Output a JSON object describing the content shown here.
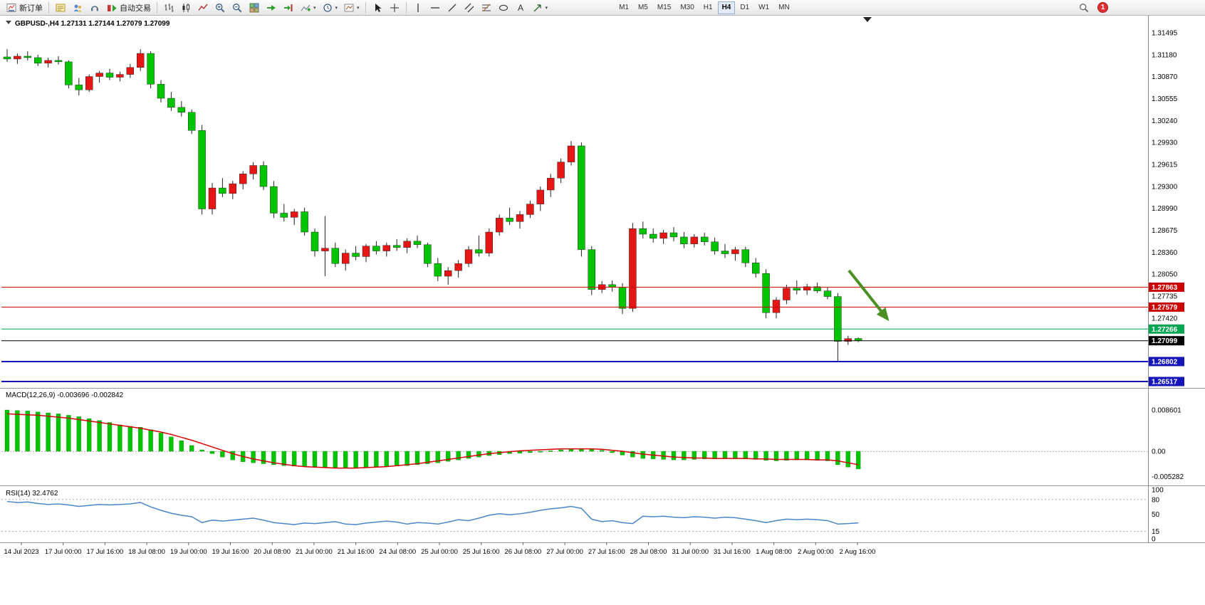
{
  "toolbar": {
    "new_order_label": "新订单",
    "auto_trading_label": "自动交易",
    "timeframes": [
      "M1",
      "M5",
      "M15",
      "M30",
      "H1",
      "H4",
      "D1",
      "W1",
      "MN"
    ],
    "active_timeframe": "H4",
    "notification_count": "1"
  },
  "chart_data": {
    "type": "candlestick",
    "symbol_label": "GBPUSD-,H4",
    "ohlc_label": "1.27131 1.27144 1.27079 1.27099",
    "colors": {
      "up": "#e41616",
      "down": "#00c400",
      "macd_hist": "#00c400",
      "macd_signal": "#d40000",
      "rsi": "#4a86c8",
      "arrow": "#4c8f22"
    },
    "price_axis": {
      "max": 1.31495,
      "min": 1.26517,
      "labels": [
        "1.31495",
        "1.31180",
        "1.30870",
        "1.30555",
        "1.30240",
        "1.29930",
        "1.29615",
        "1.29300",
        "1.28990",
        "1.28675",
        "1.28360",
        "1.28050",
        "1.27735",
        "1.27420"
      ]
    },
    "hlines": [
      {
        "price": 1.27863,
        "label": "1.27863",
        "color": "#cc0000",
        "width": 1
      },
      {
        "price": 1.27579,
        "label": "1.27579",
        "color": "#cc0000",
        "width": 1
      },
      {
        "price": 1.27266,
        "label": "1.27266",
        "color": "#00a651",
        "width": 1
      },
      {
        "price": 1.27099,
        "label": "1.27099",
        "color": "#000000",
        "width": 1
      },
      {
        "price": 1.26802,
        "label": "1.26802",
        "color": "#1414b8",
        "width": 2
      },
      {
        "price": 1.26517,
        "label": "1.26517",
        "color": "#1414b8",
        "width": 2
      }
    ],
    "candles": [
      [
        1.3115,
        1.3126,
        1.3108,
        1.3112
      ],
      [
        1.3112,
        1.312,
        1.3105,
        1.3116
      ],
      [
        1.3116,
        1.3123,
        1.311,
        1.3114
      ],
      [
        1.3114,
        1.3118,
        1.3102,
        1.3106
      ],
      [
        1.3106,
        1.3114,
        1.31,
        1.311
      ],
      [
        1.311,
        1.3116,
        1.3104,
        1.3108
      ],
      [
        1.3108,
        1.311,
        1.307,
        1.3075
      ],
      [
        1.3075,
        1.3085,
        1.306,
        1.3068
      ],
      [
        1.3068,
        1.309,
        1.3065,
        1.3087
      ],
      [
        1.3087,
        1.3095,
        1.3078,
        1.3092
      ],
      [
        1.3092,
        1.3098,
        1.3082,
        1.3086
      ],
      [
        1.3086,
        1.3094,
        1.308,
        1.309
      ],
      [
        1.309,
        1.3105,
        1.3085,
        1.31
      ],
      [
        1.31,
        1.3126,
        1.3095,
        1.312
      ],
      [
        1.312,
        1.3123,
        1.307,
        1.3076
      ],
      [
        1.3076,
        1.3082,
        1.305,
        1.3056
      ],
      [
        1.3056,
        1.3065,
        1.3038,
        1.3043
      ],
      [
        1.3043,
        1.3052,
        1.303,
        1.3036
      ],
      [
        1.3036,
        1.304,
        1.3005,
        1.301
      ],
      [
        1.301,
        1.3018,
        1.289,
        1.2898
      ],
      [
        1.2898,
        1.2935,
        1.289,
        1.2928
      ],
      [
        1.2928,
        1.2942,
        1.2915,
        1.292
      ],
      [
        1.292,
        1.2938,
        1.2912,
        1.2934
      ],
      [
        1.2934,
        1.2952,
        1.2926,
        1.2948
      ],
      [
        1.2948,
        1.2965,
        1.294,
        1.296
      ],
      [
        1.296,
        1.2966,
        1.2925,
        1.293
      ],
      [
        1.293,
        1.2938,
        1.2885,
        1.2892
      ],
      [
        1.2892,
        1.2905,
        1.288,
        1.2886
      ],
      [
        1.2886,
        1.2898,
        1.2875,
        1.2894
      ],
      [
        1.2894,
        1.29,
        1.286,
        1.2865
      ],
      [
        1.2865,
        1.287,
        1.283,
        1.2838
      ],
      [
        1.2838,
        1.2888,
        1.2802,
        1.2842
      ],
      [
        1.2842,
        1.285,
        1.2815,
        1.282
      ],
      [
        1.282,
        1.284,
        1.281,
        1.2835
      ],
      [
        1.2835,
        1.2845,
        1.2825,
        1.283
      ],
      [
        1.283,
        1.2848,
        1.2822,
        1.2845
      ],
      [
        1.2845,
        1.2852,
        1.2833,
        1.2838
      ],
      [
        1.2838,
        1.285,
        1.283,
        1.2846
      ],
      [
        1.2846,
        1.2855,
        1.2838,
        1.2843
      ],
      [
        1.2843,
        1.2856,
        1.2835,
        1.2852
      ],
      [
        1.2852,
        1.286,
        1.2842,
        1.2847
      ],
      [
        1.2847,
        1.285,
        1.2815,
        1.282
      ],
      [
        1.282,
        1.2828,
        1.2795,
        1.2802
      ],
      [
        1.2802,
        1.2815,
        1.279,
        1.281
      ],
      [
        1.281,
        1.2825,
        1.28,
        1.282
      ],
      [
        1.282,
        1.2845,
        1.2815,
        1.284
      ],
      [
        1.284,
        1.286,
        1.283,
        1.2835
      ],
      [
        1.2835,
        1.287,
        1.283,
        1.2865
      ],
      [
        1.2865,
        1.289,
        1.286,
        1.2885
      ],
      [
        1.2885,
        1.29,
        1.2875,
        1.288
      ],
      [
        1.288,
        1.2895,
        1.287,
        1.289
      ],
      [
        1.289,
        1.291,
        1.2885,
        1.2905
      ],
      [
        1.2905,
        1.293,
        1.2895,
        1.2925
      ],
      [
        1.2925,
        1.2948,
        1.2915,
        1.2942
      ],
      [
        1.2942,
        1.297,
        1.2935,
        1.2965
      ],
      [
        1.2965,
        1.2995,
        1.296,
        1.2988
      ],
      [
        1.2988,
        1.2993,
        1.283,
        1.284
      ],
      [
        1.284,
        1.2845,
        1.2775,
        1.2783
      ],
      [
        1.2783,
        1.2795,
        1.2778,
        1.279
      ],
      [
        1.279,
        1.2796,
        1.278,
        1.2786
      ],
      [
        1.2786,
        1.2792,
        1.2748,
        1.2756
      ],
      [
        1.2756,
        1.2878,
        1.2751,
        1.287
      ],
      [
        1.287,
        1.288,
        1.2856,
        1.2862
      ],
      [
        1.2862,
        1.287,
        1.285,
        1.2856
      ],
      [
        1.2856,
        1.2868,
        1.2848,
        1.2864
      ],
      [
        1.2864,
        1.2872,
        1.2852,
        1.2858
      ],
      [
        1.2858,
        1.2865,
        1.2842,
        1.2848
      ],
      [
        1.2848,
        1.2862,
        1.2843,
        1.2858
      ],
      [
        1.2858,
        1.2864,
        1.2846,
        1.2851
      ],
      [
        1.2851,
        1.2857,
        1.2833,
        1.2838
      ],
      [
        1.2838,
        1.2848,
        1.2828,
        1.2834
      ],
      [
        1.2834,
        1.2844,
        1.2824,
        1.284
      ],
      [
        1.284,
        1.2844,
        1.2815,
        1.2821
      ],
      [
        1.2821,
        1.2828,
        1.28,
        1.2806
      ],
      [
        1.2806,
        1.2812,
        1.2742,
        1.275
      ],
      [
        1.275,
        1.2772,
        1.2742,
        1.2768
      ],
      [
        1.2768,
        1.279,
        1.2762,
        1.2785
      ],
      [
        1.2785,
        1.2796,
        1.2776,
        1.2782
      ],
      [
        1.2782,
        1.2791,
        1.2775,
        1.2787
      ],
      [
        1.2787,
        1.2793,
        1.2778,
        1.2781
      ],
      [
        1.2781,
        1.2786,
        1.2769,
        1.2773
      ],
      [
        1.2773,
        1.2778,
        1.2681,
        1.2709
      ],
      [
        1.2709,
        1.2717,
        1.2704,
        1.2713
      ],
      [
        1.27131,
        1.27144,
        1.27079,
        1.27099
      ]
    ],
    "macd": {
      "label": "MACD(12,26,9)",
      "main_value": "-0.003696",
      "signal_value": "-0.002842",
      "axis": [
        "0.008601",
        "0.00",
        "-0.005282"
      ],
      "histogram": [
        0.0086,
        0.0085,
        0.0084,
        0.0082,
        0.008,
        0.0078,
        0.0075,
        0.0072,
        0.0068,
        0.0064,
        0.006,
        0.0055,
        0.0052,
        0.005,
        0.0045,
        0.0038,
        0.003,
        0.0022,
        0.0012,
        0.0003,
        -0.0005,
        -0.0012,
        -0.0018,
        -0.0022,
        -0.0024,
        -0.0026,
        -0.0028,
        -0.003,
        -0.0031,
        -0.0032,
        -0.0033,
        -0.0034,
        -0.0034,
        -0.0035,
        -0.0035,
        -0.0034,
        -0.0033,
        -0.0032,
        -0.0031,
        -0.003,
        -0.0028,
        -0.0026,
        -0.0024,
        -0.0021,
        -0.0018,
        -0.0015,
        -0.0012,
        -0.0009,
        -0.0007,
        -0.0005,
        -0.0004,
        -0.0003,
        -0.0002,
        0.0001,
        0.0003,
        0.0004,
        0.0005,
        0.0004,
        0.0002,
        -0.0003,
        -0.0008,
        -0.0012,
        -0.0015,
        -0.0016,
        -0.0017,
        -0.0018,
        -0.0018,
        -0.0017,
        -0.0016,
        -0.0016,
        -0.0015,
        -0.0015,
        -0.0016,
        -0.0017,
        -0.0019,
        -0.002,
        -0.0019,
        -0.0018,
        -0.0018,
        -0.0019,
        -0.002,
        -0.0028,
        -0.0033,
        -0.0037
      ],
      "signal": [
        0.0078,
        0.0077,
        0.0076,
        0.0075,
        0.0073,
        0.0071,
        0.0069,
        0.0066,
        0.0063,
        0.006,
        0.0057,
        0.0054,
        0.0051,
        0.0048,
        0.0044,
        0.004,
        0.0035,
        0.0029,
        0.0023,
        0.0016,
        0.0009,
        0.0002,
        -0.0005,
        -0.0011,
        -0.0016,
        -0.002,
        -0.0024,
        -0.0027,
        -0.003,
        -0.0032,
        -0.0033,
        -0.0034,
        -0.0035,
        -0.0035,
        -0.0035,
        -0.0034,
        -0.0033,
        -0.0032,
        -0.003,
        -0.0028,
        -0.0026,
        -0.0023,
        -0.002,
        -0.0017,
        -0.0014,
        -0.0011,
        -0.0008,
        -0.0005,
        -0.0003,
        -0.0001,
        0.0001,
        0.0002,
        0.0003,
        0.0004,
        0.0005,
        0.0005,
        0.0005,
        0.0005,
        0.0004,
        0.0002,
        0.0,
        -0.0003,
        -0.0006,
        -0.0008,
        -0.001,
        -0.0012,
        -0.0013,
        -0.0014,
        -0.0014,
        -0.0015,
        -0.0015,
        -0.0015,
        -0.0015,
        -0.0016,
        -0.0016,
        -0.0017,
        -0.0017,
        -0.0017,
        -0.0017,
        -0.0018,
        -0.0018,
        -0.002,
        -0.0024,
        -0.0028
      ]
    },
    "rsi": {
      "label": "RSI(14)",
      "value_label": "32.4762",
      "axis": [
        "100",
        "80",
        "50",
        "15",
        "0"
      ],
      "levels": [
        80,
        15
      ],
      "values": [
        76,
        74,
        75,
        72,
        70,
        71,
        69,
        66,
        68,
        70,
        69,
        70,
        71,
        74,
        65,
        58,
        52,
        48,
        45,
        33,
        38,
        36,
        38,
        40,
        42,
        38,
        33,
        31,
        29,
        32,
        31,
        33,
        35,
        30,
        29,
        32,
        34,
        36,
        34,
        30,
        33,
        32,
        30,
        34,
        39,
        37,
        42,
        48,
        51,
        49,
        51,
        54,
        58,
        61,
        63,
        66,
        62,
        40,
        35,
        37,
        33,
        31,
        46,
        45,
        46,
        44,
        43,
        45,
        44,
        42,
        44,
        43,
        40,
        37,
        33,
        37,
        40,
        39,
        40,
        39,
        37,
        30,
        31,
        32.4762
      ]
    },
    "x_labels": [
      "14 Jul 2023",
      "17 Jul 00:00",
      "17 Jul 16:00",
      "18 Jul 08:00",
      "19 Jul 00:00",
      "19 Jul 16:00",
      "20 Jul 08:00",
      "21 Jul 00:00",
      "21 Jul 16:00",
      "24 Jul 08:00",
      "25 Jul 00:00",
      "25 Jul 16:00",
      "26 Jul 08:00",
      "27 Jul 00:00",
      "27 Jul 16:00",
      "28 Jul 08:00",
      "31 Jul 00:00",
      "31 Jul 16:00",
      "1 Aug 08:00",
      "2 Aug 00:00",
      "2 Aug 16:00"
    ]
  }
}
